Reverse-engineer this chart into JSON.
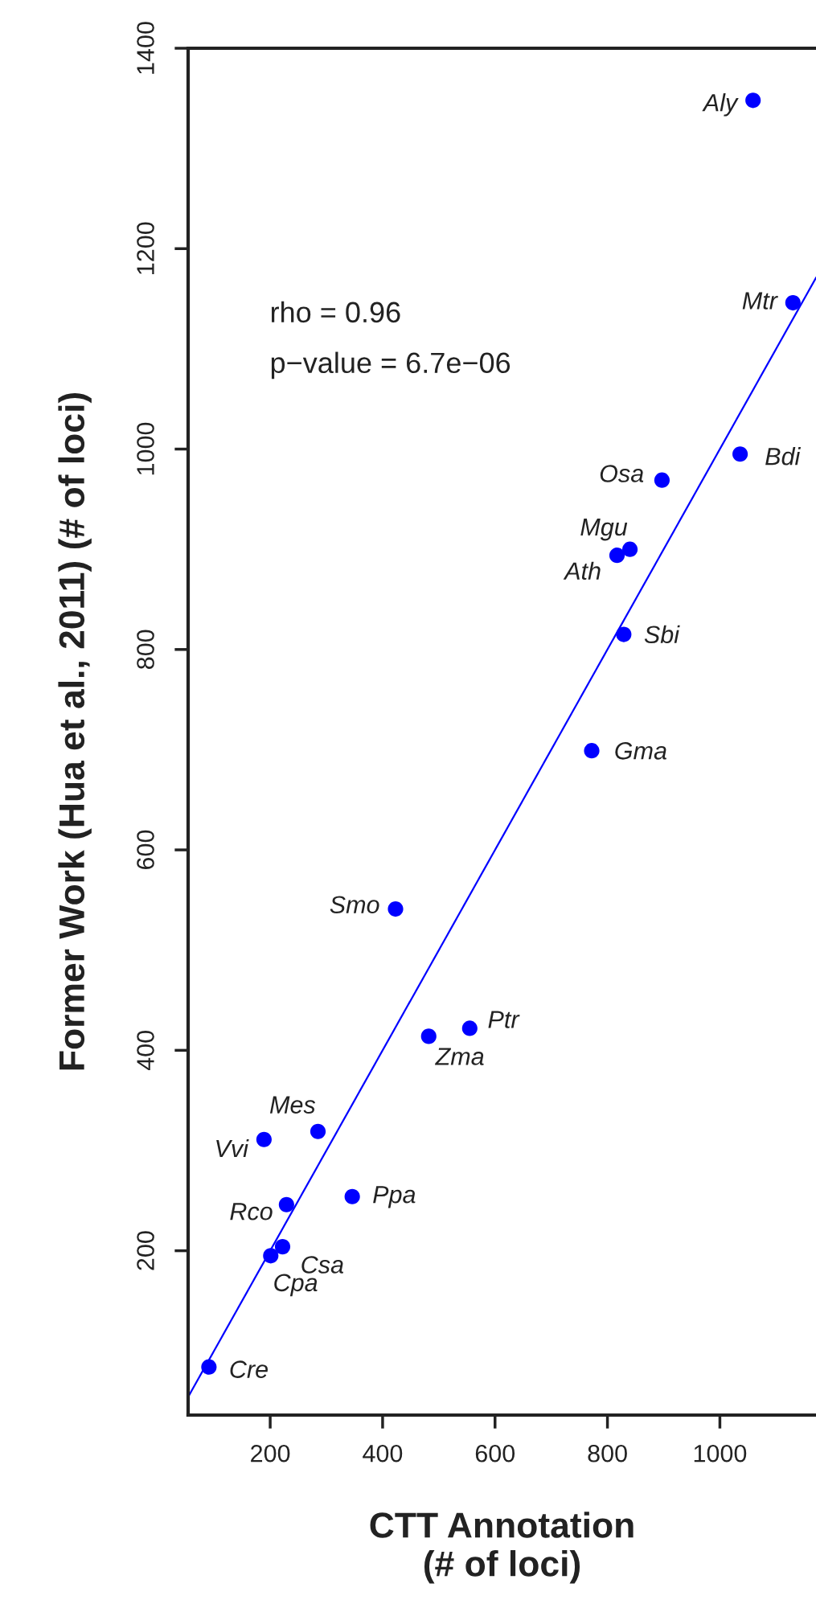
{
  "chart_data": {
    "type": "scatter",
    "xlabel": "CTT Annotation\n(# of loci)",
    "ylabel": "Former Work (Hua et al., 2011) (# of loci)",
    "x": [
      1059,
      1130,
      1036,
      897,
      840,
      817,
      829,
      772,
      423,
      555,
      482,
      285,
      189,
      346,
      229,
      222,
      201,
      91
    ],
    "series": [
      {
        "color": "#0000ff",
        "marker": "circle",
        "values": [
          1348,
          1146,
          995,
          969,
          900,
          894,
          815,
          699,
          541,
          422,
          414,
          319,
          311,
          254,
          246,
          204,
          195,
          84
        ]
      },
      {
        "type": "line",
        "color": "#0000ff",
        "x": [
          54,
          1171
        ],
        "values": [
          54,
          1171
        ]
      }
    ],
    "annotations": [
      {
        "text": "Aly",
        "x": 1059,
        "y": 1348
      },
      {
        "text": "Mtr",
        "x": 1130,
        "y": 1146
      },
      {
        "text": "Bdi",
        "x": 1036,
        "y": 995
      },
      {
        "text": "Osa",
        "x": 897,
        "y": 969
      },
      {
        "text": "Mgu",
        "x": 840,
        "y": 900
      },
      {
        "text": "Ath",
        "x": 817,
        "y": 894
      },
      {
        "text": "Sbi",
        "x": 829,
        "y": 815
      },
      {
        "text": "Gma",
        "x": 772,
        "y": 699
      },
      {
        "text": "Smo",
        "x": 423,
        "y": 541
      },
      {
        "text": "Ptr",
        "x": 555,
        "y": 422
      },
      {
        "text": "Zma",
        "x": 482,
        "y": 414
      },
      {
        "text": "Mes",
        "x": 285,
        "y": 319
      },
      {
        "text": "Vvi",
        "x": 189,
        "y": 311
      },
      {
        "text": "Ppa",
        "x": 346,
        "y": 254
      },
      {
        "text": "Rco",
        "x": 229,
        "y": 246
      },
      {
        "text": "Csa",
        "x": 222,
        "y": 204
      },
      {
        "text": "Cpa",
        "x": 201,
        "y": 195
      },
      {
        "text": "Cre",
        "x": 91,
        "y": 84
      },
      "rho = 0.96",
      "p−value = 6.7e−06"
    ],
    "xlim": [
      54,
      1171
    ],
    "ylim": [
      36,
      1400
    ],
    "xticks": [
      200,
      400,
      600,
      800,
      1000
    ],
    "yticks": [
      200,
      400,
      600,
      800,
      1000,
      1200,
      1400
    ],
    "grid": false,
    "legend": false
  }
}
